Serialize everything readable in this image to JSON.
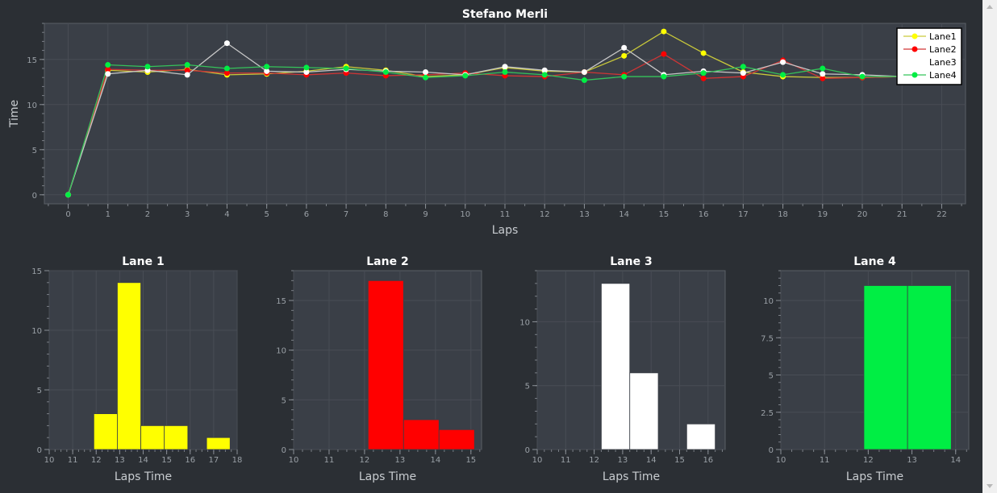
{
  "chart_data": [
    {
      "type": "line",
      "title": "Stefano Merli",
      "xlabel": "Laps",
      "ylabel": "Time",
      "xlim": [
        -0.6,
        22.6
      ],
      "ylim": [
        -1,
        19
      ],
      "xticks": [
        0,
        1,
        2,
        3,
        4,
        5,
        6,
        7,
        8,
        9,
        10,
        11,
        12,
        13,
        14,
        15,
        16,
        17,
        18,
        19,
        20,
        21,
        22
      ],
      "yticks": [
        0,
        5,
        10,
        15
      ],
      "grid": true,
      "legend": "top-right",
      "x": [
        0,
        1,
        2,
        3,
        4,
        5,
        6,
        7,
        8,
        9,
        10,
        11,
        12,
        13,
        14,
        15,
        16,
        17,
        18,
        19,
        20,
        21
      ],
      "series": [
        {
          "name": "Lane1",
          "color": "#ffff00",
          "line_color": "#c9c93a",
          "values": [
            0,
            13.8,
            13.6,
            13.9,
            13.3,
            13.4,
            13.7,
            14.2,
            13.8,
            13.1,
            13.3,
            14.1,
            13.7,
            13.6,
            15.4,
            18.1,
            15.7,
            13.6,
            13.1,
            13.0,
            13.0,
            13.1
          ]
        },
        {
          "name": "Lane2",
          "color": "#ff0000",
          "line_color": "#d03535",
          "values": [
            0,
            13.9,
            13.8,
            13.8,
            13.5,
            13.5,
            13.3,
            13.5,
            13.2,
            13.3,
            13.5,
            13.2,
            13.1,
            13.6,
            13.3,
            15.6,
            12.9,
            13.1,
            14.9,
            12.9,
            13.0,
            13.1
          ]
        },
        {
          "name": "Lane3",
          "color": "#ffffff",
          "line_color": "#c8c8c8",
          "values": [
            0,
            13.4,
            13.8,
            13.3,
            16.8,
            13.7,
            13.6,
            13.9,
            13.7,
            13.6,
            13.3,
            14.2,
            13.8,
            13.6,
            16.3,
            13.3,
            13.7,
            13.5,
            14.7,
            13.4,
            13.3,
            13.1
          ]
        },
        {
          "name": "Lane4",
          "color": "#00ee44",
          "line_color": "#35c35a",
          "values": [
            0,
            14.4,
            14.2,
            14.4,
            14.0,
            14.2,
            14.1,
            14.0,
            13.6,
            13.0,
            13.2,
            13.6,
            13.3,
            12.7,
            13.1,
            13.1,
            13.5,
            14.2,
            13.3,
            14.0,
            13.1,
            13.1
          ]
        }
      ]
    },
    {
      "type": "bar",
      "title": "Lane 1",
      "xlabel": "Laps Time",
      "color": "#ffff00",
      "xlim": [
        10,
        18
      ],
      "ylim": [
        0,
        15
      ],
      "xticks": [
        10,
        11,
        12,
        13,
        14,
        15,
        16,
        17,
        18
      ],
      "yticks": [
        0,
        5,
        10,
        15
      ],
      "bins": [
        [
          11.9,
          12.9
        ],
        [
          12.9,
          13.9
        ],
        [
          13.9,
          14.9
        ],
        [
          14.9,
          15.9
        ],
        [
          16.7,
          17.7
        ]
      ],
      "values": [
        3,
        14,
        2,
        2,
        1
      ]
    },
    {
      "type": "bar",
      "title": "Lane 2",
      "xlabel": "Laps Time",
      "color": "#ff0000",
      "xlim": [
        10,
        15.3
      ],
      "ylim": [
        0,
        18
      ],
      "xticks": [
        10,
        11,
        12,
        13,
        14,
        15
      ],
      "yticks": [
        0,
        5,
        10,
        15
      ],
      "bins": [
        [
          12.1,
          13.1
        ],
        [
          13.1,
          14.1
        ],
        [
          14.1,
          15.1
        ]
      ],
      "values": [
        17,
        3,
        2
      ]
    },
    {
      "type": "bar",
      "title": "Lane 3",
      "xlabel": "Laps Time",
      "color": "#ffffff",
      "xlim": [
        10,
        16.6
      ],
      "ylim": [
        0,
        14
      ],
      "xticks": [
        10,
        11,
        12,
        13,
        14,
        15,
        16
      ],
      "yticks": [
        0,
        5,
        10
      ],
      "bins": [
        [
          12.25,
          13.25
        ],
        [
          13.25,
          14.25
        ],
        [
          15.25,
          16.25
        ]
      ],
      "values": [
        13,
        6,
        2
      ]
    },
    {
      "type": "bar",
      "title": "Lane 4",
      "xlabel": "Laps Time",
      "color": "#00ee44",
      "xlim": [
        10,
        14.3
      ],
      "ylim": [
        0,
        12
      ],
      "xticks": [
        10,
        11,
        12,
        13,
        14
      ],
      "yticks": [
        0,
        2.5,
        5,
        7.5,
        10
      ],
      "bins": [
        [
          11.9,
          12.9
        ],
        [
          12.9,
          13.9
        ]
      ],
      "values": [
        11,
        11
      ]
    }
  ]
}
